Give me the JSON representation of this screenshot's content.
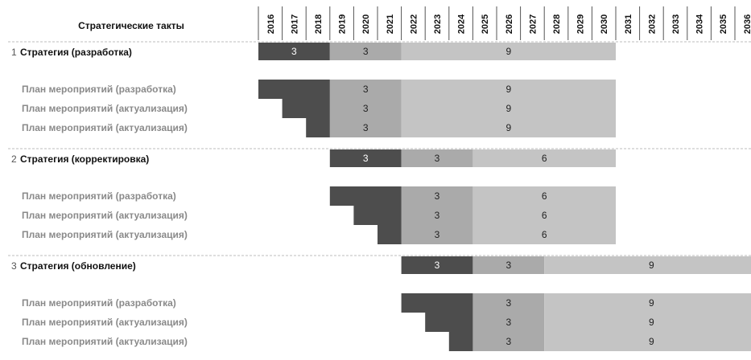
{
  "title": "Стратегические такты",
  "years": [
    "2016",
    "2017",
    "2018",
    "2019",
    "2020",
    "2021",
    "2022",
    "2023",
    "2024",
    "2025",
    "2026",
    "2027",
    "2028",
    "2029",
    "2030",
    "2031",
    "2032",
    "2033",
    "2034",
    "2035",
    "2036"
  ],
  "colors": {
    "dark": "#4d4d4d",
    "mid": "#aaaaaa",
    "light": "#c4c4c4",
    "divider": "#bdbdbd"
  },
  "chart_data": {
    "type": "gantt",
    "groups": [
      {
        "number": "1",
        "name": "Стратегия (разработка)",
        "bar": [
          {
            "from": "2016",
            "to": "2018",
            "label": "3",
            "shade": "dark"
          },
          {
            "from": "2019",
            "to": "2021",
            "label": "3",
            "shade": "mid"
          },
          {
            "from": "2022",
            "to": "2030",
            "label": "9",
            "shade": "light"
          }
        ],
        "plans": [
          {
            "name": "План мероприятий (разработка)",
            "dark_from": "2016",
            "dark_to": "2018"
          },
          {
            "name": "План мероприятий (актуализация)",
            "dark_from": "2017",
            "dark_to": "2018"
          },
          {
            "name": "План мероприятий (актуализация)",
            "dark_from": "2018",
            "dark_to": "2018"
          }
        ],
        "plan_bar": [
          {
            "from": "2019",
            "to": "2021",
            "label": "3",
            "shade": "mid"
          },
          {
            "from": "2022",
            "to": "2030",
            "label": "9",
            "shade": "light"
          }
        ]
      },
      {
        "number": "2",
        "name": "Стратегия (корректировка)",
        "bar": [
          {
            "from": "2019",
            "to": "2021",
            "label": "3",
            "shade": "dark"
          },
          {
            "from": "2022",
            "to": "2024",
            "label": "3",
            "shade": "mid"
          },
          {
            "from": "2025",
            "to": "2030",
            "label": "6",
            "shade": "light"
          }
        ],
        "plans": [
          {
            "name": "План мероприятий (разработка)",
            "dark_from": "2019",
            "dark_to": "2021"
          },
          {
            "name": "План мероприятий (актуализация)",
            "dark_from": "2020",
            "dark_to": "2021"
          },
          {
            "name": "План мероприятий (актуализация)",
            "dark_from": "2021",
            "dark_to": "2021"
          }
        ],
        "plan_bar": [
          {
            "from": "2022",
            "to": "2024",
            "label": "3",
            "shade": "mid"
          },
          {
            "from": "2025",
            "to": "2030",
            "label": "6",
            "shade": "light"
          }
        ]
      },
      {
        "number": "3",
        "name": "Стратегия (обновление)",
        "bar": [
          {
            "from": "2022",
            "to": "2024",
            "label": "3",
            "shade": "dark"
          },
          {
            "from": "2025",
            "to": "2027",
            "label": "3",
            "shade": "mid"
          },
          {
            "from": "2028",
            "to": "2036",
            "label": "9",
            "shade": "light"
          }
        ],
        "plans": [
          {
            "name": "План мероприятий (разработка)",
            "dark_from": "2022",
            "dark_to": "2024"
          },
          {
            "name": "План мероприятий (актуализация)",
            "dark_from": "2023",
            "dark_to": "2024"
          },
          {
            "name": "План мероприятий (актуализация)",
            "dark_from": "2024",
            "dark_to": "2024"
          }
        ],
        "plan_bar": [
          {
            "from": "2025",
            "to": "2027",
            "label": "3",
            "shade": "mid"
          },
          {
            "from": "2028",
            "to": "2036",
            "label": "9",
            "shade": "light"
          }
        ]
      }
    ]
  }
}
